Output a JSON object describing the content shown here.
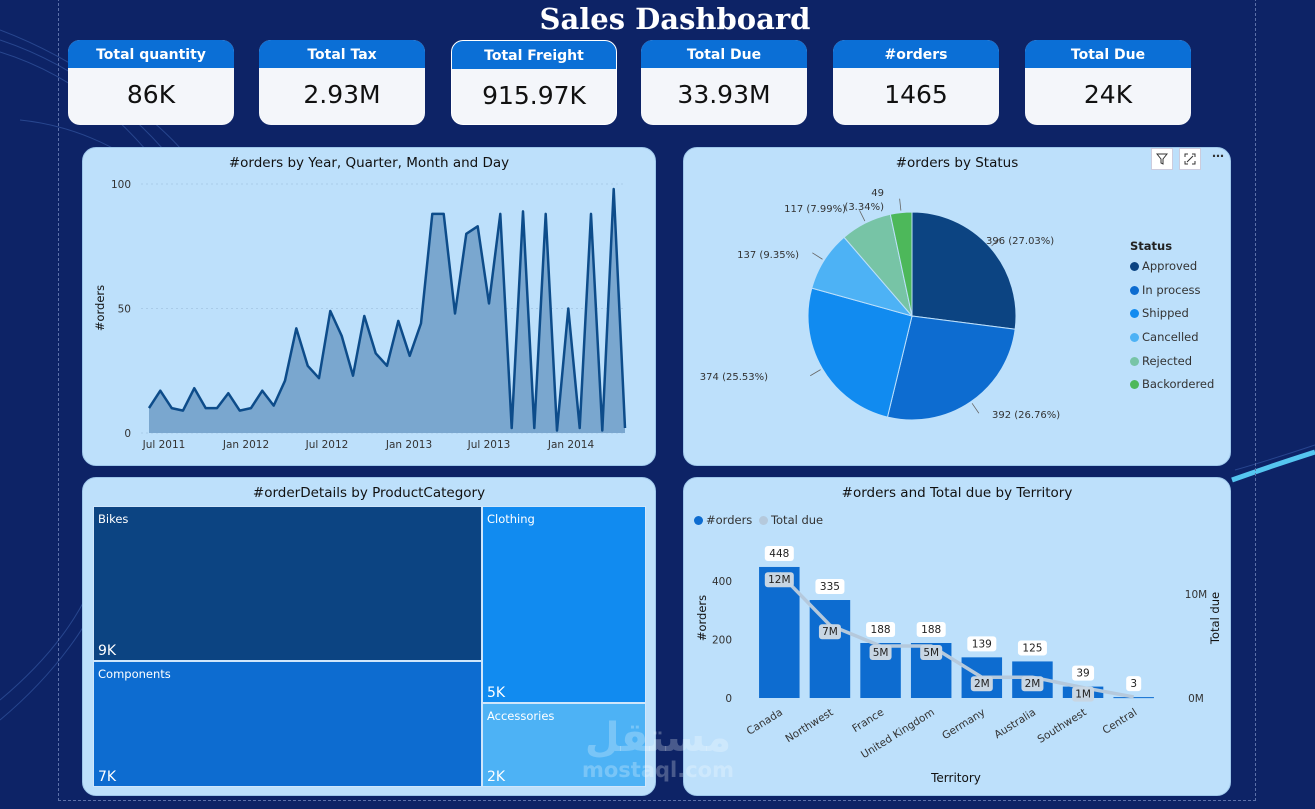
{
  "title": "Sales Dashboard",
  "kpis": [
    {
      "label": "Total quantity",
      "value": "86K"
    },
    {
      "label": "Total Tax",
      "value": "2.93M"
    },
    {
      "label": "Total Freight",
      "value": "915.97K"
    },
    {
      "label": "Total Due",
      "value": "33.93M"
    },
    {
      "label": "#orders",
      "value": "1465"
    },
    {
      "label": "Total Due",
      "value": "24K"
    }
  ],
  "area_chart": {
    "title": "#orders by Year, Quarter, Month and Day",
    "ylabel": "#orders",
    "chart_data": {
      "type": "area",
      "ylim": [
        0,
        100
      ],
      "yticks": [
        0,
        50,
        100
      ],
      "xticks": [
        "Jul 2011",
        "Jan 2012",
        "Jul 2012",
        "Jan 2013",
        "Jul 2013",
        "Jan 2014"
      ],
      "values": [
        10,
        17,
        10,
        9,
        18,
        10,
        10,
        16,
        9,
        10,
        17,
        11,
        21,
        42,
        27,
        22,
        49,
        39,
        23,
        47,
        32,
        27,
        45,
        31,
        44,
        88,
        88,
        48,
        80,
        83,
        52,
        88,
        2,
        89,
        2,
        88,
        1,
        50,
        2,
        88,
        1,
        98,
        2
      ],
      "color": "#0d4c8a"
    }
  },
  "pie_chart": {
    "title": "#orders by Status",
    "legend_title": "Status",
    "chart_data": {
      "type": "pie",
      "slices": [
        {
          "name": "Approved",
          "value": 396,
          "label": "396 (27.03%)",
          "color": "#0c4482"
        },
        {
          "name": "In process",
          "value": 392,
          "label": "392 (26.76%)",
          "color": "#0d6cd0"
        },
        {
          "name": "Shipped",
          "value": 374,
          "label": "374 (25.53%)",
          "color": "#118bf0"
        },
        {
          "name": "Cancelled",
          "value": 137,
          "label": "137 (9.35%)",
          "color": "#4db2f5"
        },
        {
          "name": "Rejected",
          "value": 117,
          "label": "117 (7.99%)",
          "color": "#77c4a6"
        },
        {
          "name": "Backordered",
          "value": 49,
          "label": "49 (3.34%)",
          "color": "#4db85a"
        }
      ]
    },
    "tools": {
      "filter": "filter-icon",
      "focus": "focus-mode-icon",
      "more": "more-options-icon"
    }
  },
  "treemap": {
    "title": "#orderDetails by ProductCategory",
    "chart_data": {
      "type": "treemap",
      "items": [
        {
          "name": "Bikes",
          "label": "9K",
          "color": "#0c4482"
        },
        {
          "name": "Components",
          "label": "7K",
          "color": "#0d6cd0"
        },
        {
          "name": "Clothing",
          "label": "5K",
          "color": "#118bf0"
        },
        {
          "name": "Accessories",
          "label": "2K",
          "color": "#4db2f5"
        }
      ]
    }
  },
  "combo_chart": {
    "title": "#orders and Total due by Territory",
    "legend": [
      {
        "name": "#orders",
        "color": "#0d6cd0"
      },
      {
        "name": "Total due",
        "color": "#b5c9dc"
      }
    ],
    "xlabel": "Territory",
    "ylabel_left": "#orders",
    "ylabel_right": "Total due",
    "chart_data": {
      "type": "bar",
      "categories": [
        "Canada",
        "Northwest",
        "France",
        "United Kingdom",
        "Germany",
        "Australia",
        "Southwest",
        "Central"
      ],
      "series": [
        {
          "name": "#orders",
          "values": [
            448,
            335,
            188,
            188,
            139,
            125,
            39,
            3
          ],
          "labels": [
            "448",
            "335",
            "188",
            "188",
            "139",
            "125",
            "39",
            "3"
          ]
        },
        {
          "name": "Total due",
          "values": [
            12,
            7,
            5,
            5,
            2,
            2,
            1,
            0.1
          ],
          "labels": [
            "12M",
            "7M",
            "5M",
            "5M",
            "2M",
            "2M",
            "1M",
            ""
          ]
        }
      ],
      "ylim_left": [
        0,
        500
      ],
      "yticks_left": [
        "0",
        "200",
        "400"
      ],
      "yticks_right": [
        "0M",
        "10M"
      ]
    }
  },
  "watermark": {
    "arabic": "مستقل",
    "latin": "mostaql.com"
  }
}
